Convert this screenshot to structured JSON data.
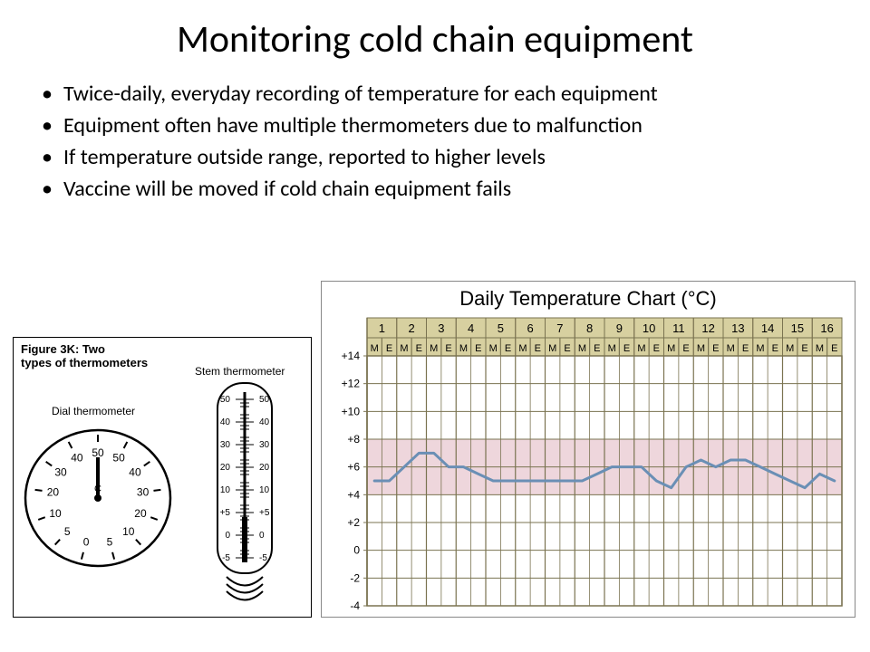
{
  "title": "Monitoring cold chain equipment",
  "bullets": [
    "Twice-daily, everyday recording of temperature for each equipment",
    "Equipment often have multiple thermometers due to malfunction",
    "If temperature outside range, reported to higher levels",
    "Vaccine will be moved if cold chain equipment fails"
  ],
  "figure_left": {
    "caption_line1": "Figure 3K: Two",
    "caption_line2": "types of thermometers",
    "dial_label": "Dial thermometer",
    "stem_label": "Stem thermometer",
    "dial": {
      "numbers": [
        "0",
        "5",
        "10",
        "20",
        "30",
        "40",
        "50",
        "50",
        "40",
        "30",
        "20",
        "10",
        "5"
      ],
      "unit": "C"
    },
    "stem": {
      "scale": [
        "50",
        "40",
        "30",
        "20",
        "10",
        "+5",
        "0",
        "-5"
      ]
    }
  },
  "chart": {
    "title": "Daily Temperature Chart (°C)",
    "days": [
      "1",
      "2",
      "3",
      "4",
      "5",
      "6",
      "7",
      "8",
      "9",
      "10",
      "11",
      "12",
      "13",
      "14",
      "15",
      "16"
    ],
    "subcols": [
      "M",
      "E"
    ],
    "ylabels": [
      "+14",
      "+12",
      "+10",
      "+8",
      "+6",
      "+4",
      "+2",
      "0",
      "-2",
      "-4"
    ],
    "ylim": [
      -4,
      14
    ],
    "safe_band": [
      4,
      8
    ],
    "header_bg": "#d7d0a0",
    "header_border": "#7a7350",
    "grid_color": "#7a7350",
    "band_color": "#eed6dc",
    "line_color": "#6a8fb5",
    "line_width": 3,
    "data": [
      5,
      5,
      6,
      7,
      7,
      6,
      6,
      5.5,
      5,
      5,
      5,
      5,
      5,
      5,
      5,
      5.5,
      6,
      6,
      6,
      5,
      4.5,
      6,
      6.5,
      6,
      6.5,
      6.5,
      6,
      5.5,
      5,
      4.5,
      5.5,
      5
    ]
  },
  "colors": {
    "text": "#000000",
    "background": "#ffffff"
  }
}
